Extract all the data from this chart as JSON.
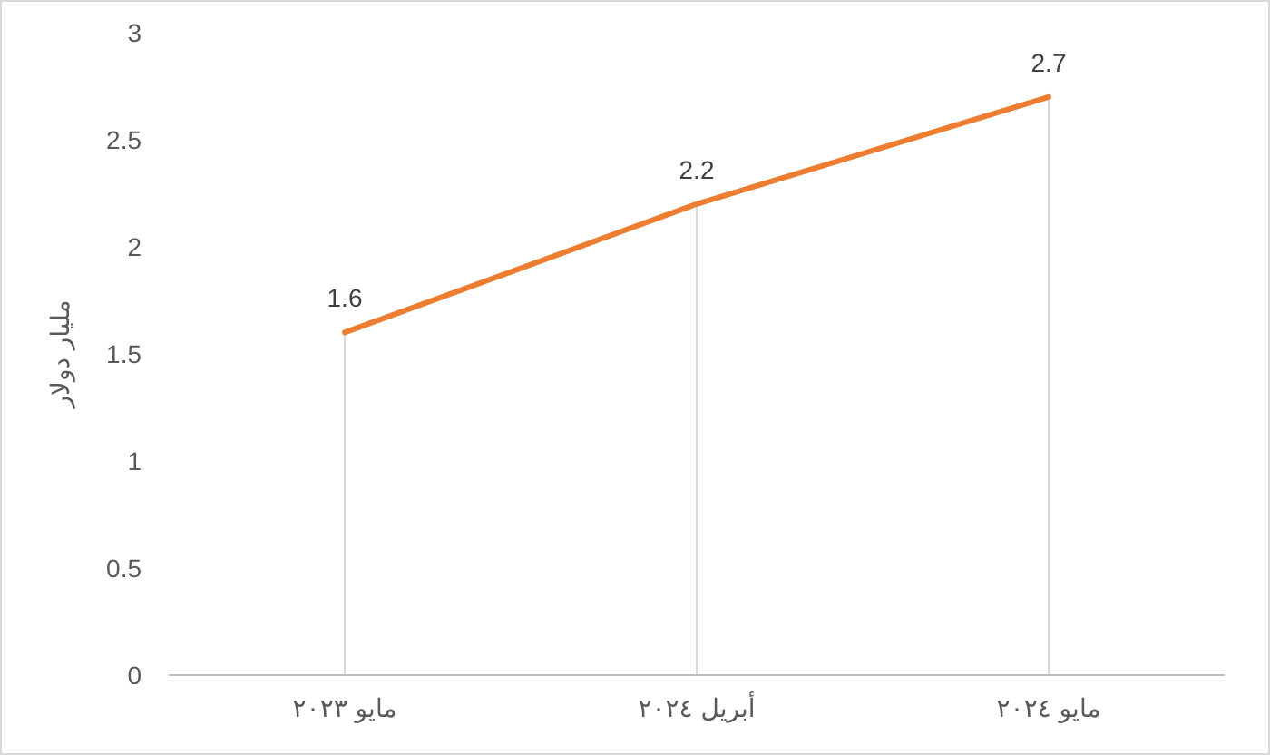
{
  "chart_data": {
    "type": "line",
    "ylabel": "مليار دولار",
    "categories": [
      "مايو ٢٠٢٣",
      "أبريل ٢٠٢٤",
      "مايو ٢٠٢٤"
    ],
    "series": [
      {
        "color": "#ed7d31",
        "values": [
          1.6,
          2.2,
          2.7
        ]
      }
    ],
    "ylim": [
      0,
      3
    ],
    "yticks": [
      0,
      0.5,
      1,
      1.5,
      2,
      2.5,
      3
    ],
    "grid": "x",
    "data_labels": true,
    "marker": "none",
    "line_style": "solid"
  }
}
